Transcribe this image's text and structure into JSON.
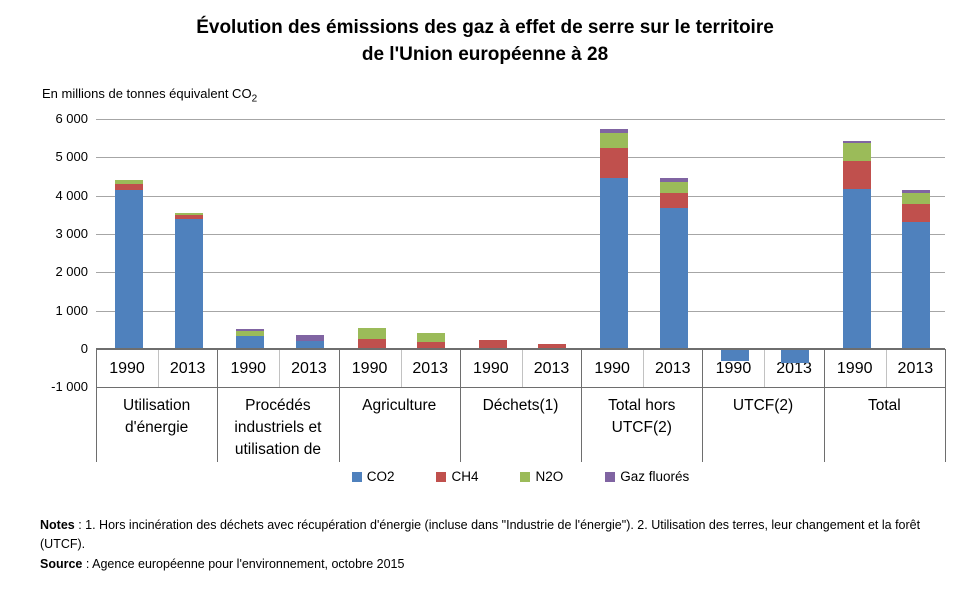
{
  "title": {
    "line1": "Évolution des émissions des gaz à effet de serre sur le territoire",
    "line2": "de l'Union européenne à 28"
  },
  "unit": {
    "text": "En millions de tonnes équivalent CO",
    "sub": "2"
  },
  "notes": {
    "label": "Notes",
    "text": " : 1. Hors incinération des déchets avec récupération d'énergie (incluse dans \"Industrie de l'énergie\").  2. Utilisation des terres, leur changement et la forêt (UTCF)."
  },
  "source": {
    "label": "Source",
    "text": " : Agence européenne pour l'environnement, octobre 2015"
  },
  "chart_data": {
    "type": "bar",
    "stacked": true,
    "title": "Évolution des émissions des gaz à effet de serre sur le territoire de l'Union européenne à 28",
    "ylabel": "En millions de tonnes équivalent CO2",
    "ylim": [
      -1000,
      6000
    ],
    "grid": true,
    "legend_position": "bottom",
    "yticks": [
      {
        "label": "6 000",
        "value": 6000
      },
      {
        "label": "5 000",
        "value": 5000
      },
      {
        "label": "4 000",
        "value": 4000
      },
      {
        "label": "3 000",
        "value": 3000
      },
      {
        "label": "2 000",
        "value": 2000
      },
      {
        "label": "1 000",
        "value": 1000
      },
      {
        "label": "0",
        "value": 0
      },
      {
        "label": "-1 000",
        "value": -1000
      }
    ],
    "series": [
      {
        "name": "CO2",
        "color": "#4F81BD"
      },
      {
        "name": "CH4",
        "color": "#C0504D"
      },
      {
        "name": "N2O",
        "color": "#9BBB59"
      },
      {
        "name": "Gaz fluorés",
        "color": "#8064A2"
      }
    ],
    "groups": [
      {
        "label_lines": [
          "Utilisation",
          "d'énergie"
        ],
        "bars": [
          {
            "year": "1990",
            "values": {
              "CO2": 4140,
              "CH4": 175,
              "N2O": 85,
              "Gaz fluorés": 0
            }
          },
          {
            "year": "2013",
            "values": {
              "CO2": 3400,
              "CH4": 90,
              "N2O": 60,
              "Gaz fluorés": 0
            }
          }
        ]
      },
      {
        "label_lines": [
          "Procédés",
          "industriels et",
          "utilisation de"
        ],
        "bars": [
          {
            "year": "1990",
            "values": {
              "CO2": 340,
              "CH4": 0,
              "N2O": 130,
              "Gaz fluorés": 50
            }
          },
          {
            "year": "2013",
            "values": {
              "CO2": 220,
              "CH4": 0,
              "N2O": 0,
              "Gaz fluorés": 140
            }
          }
        ]
      },
      {
        "label_lines": [
          "Agriculture"
        ],
        "bars": [
          {
            "year": "1990",
            "values": {
              "CO2": 0,
              "CH4": 250,
              "N2O": 290,
              "Gaz fluorés": 0
            }
          },
          {
            "year": "2013",
            "values": {
              "CO2": 0,
              "CH4": 190,
              "N2O": 240,
              "Gaz fluorés": 0
            }
          }
        ]
      },
      {
        "label_lines": [
          "Déchets(1)"
        ],
        "bars": [
          {
            "year": "1990",
            "values": {
              "CO2": 0,
              "CH4": 240,
              "N2O": 0,
              "Gaz fluorés": 0
            }
          },
          {
            "year": "2013",
            "values": {
              "CO2": 0,
              "CH4": 130,
              "N2O": 0,
              "Gaz fluorés": 0
            }
          }
        ]
      },
      {
        "label_lines": [
          "Total hors",
          "UTCF(2)"
        ],
        "bars": [
          {
            "year": "1990",
            "values": {
              "CO2": 4450,
              "CH4": 780,
              "N2O": 410,
              "Gaz fluorés": 90
            }
          },
          {
            "year": "2013",
            "values": {
              "CO2": 3670,
              "CH4": 410,
              "N2O": 285,
              "Gaz fluorés": 90
            }
          }
        ]
      },
      {
        "label_lines": [
          "UTCF(2)"
        ],
        "bars": [
          {
            "year": "1990",
            "values": {
              "CO2": -310,
              "CH4": 0,
              "N2O": 0,
              "Gaz fluorés": 0
            }
          },
          {
            "year": "2013",
            "values": {
              "CO2": -370,
              "CH4": 0,
              "N2O": 0,
              "Gaz fluorés": 0
            }
          }
        ]
      },
      {
        "label_lines": [
          "Total"
        ],
        "bars": [
          {
            "year": "1990",
            "values": {
              "CO2": 4175,
              "CH4": 735,
              "N2O": 455,
              "Gaz fluorés": 70
            }
          },
          {
            "year": "2013",
            "values": {
              "CO2": 3310,
              "CH4": 470,
              "N2O": 285,
              "Gaz fluorés": 85
            }
          }
        ]
      }
    ]
  }
}
